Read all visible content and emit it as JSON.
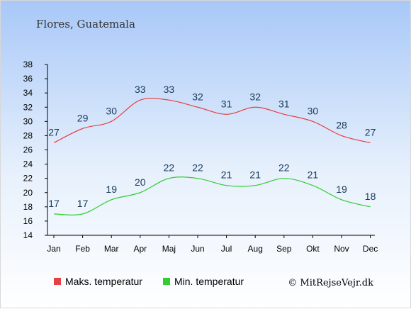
{
  "chart_data": {
    "type": "line",
    "title": "Flores, Guatemala",
    "categories": [
      "Jan",
      "Feb",
      "Mar",
      "Apr",
      "Maj",
      "Jun",
      "Jul",
      "Aug",
      "Sep",
      "Okt",
      "Nov",
      "Dec"
    ],
    "series": [
      {
        "name": "Maks. temperatur",
        "color": "#e84040",
        "values": [
          27,
          29,
          30,
          33,
          33,
          32,
          31,
          32,
          31,
          30,
          28,
          27
        ]
      },
      {
        "name": "Min. temperatur",
        "color": "#33cc33",
        "values": [
          17,
          17,
          19,
          20,
          22,
          22,
          21,
          21,
          22,
          21,
          19,
          18
        ]
      }
    ],
    "yticks": [
      14,
      16,
      18,
      20,
      22,
      24,
      26,
      28,
      30,
      32,
      34,
      36,
      38
    ],
    "ylim": [
      14,
      38
    ],
    "grid": false,
    "legend_position": "bottom-left"
  },
  "credit": "© MitRejseVejr.dk"
}
